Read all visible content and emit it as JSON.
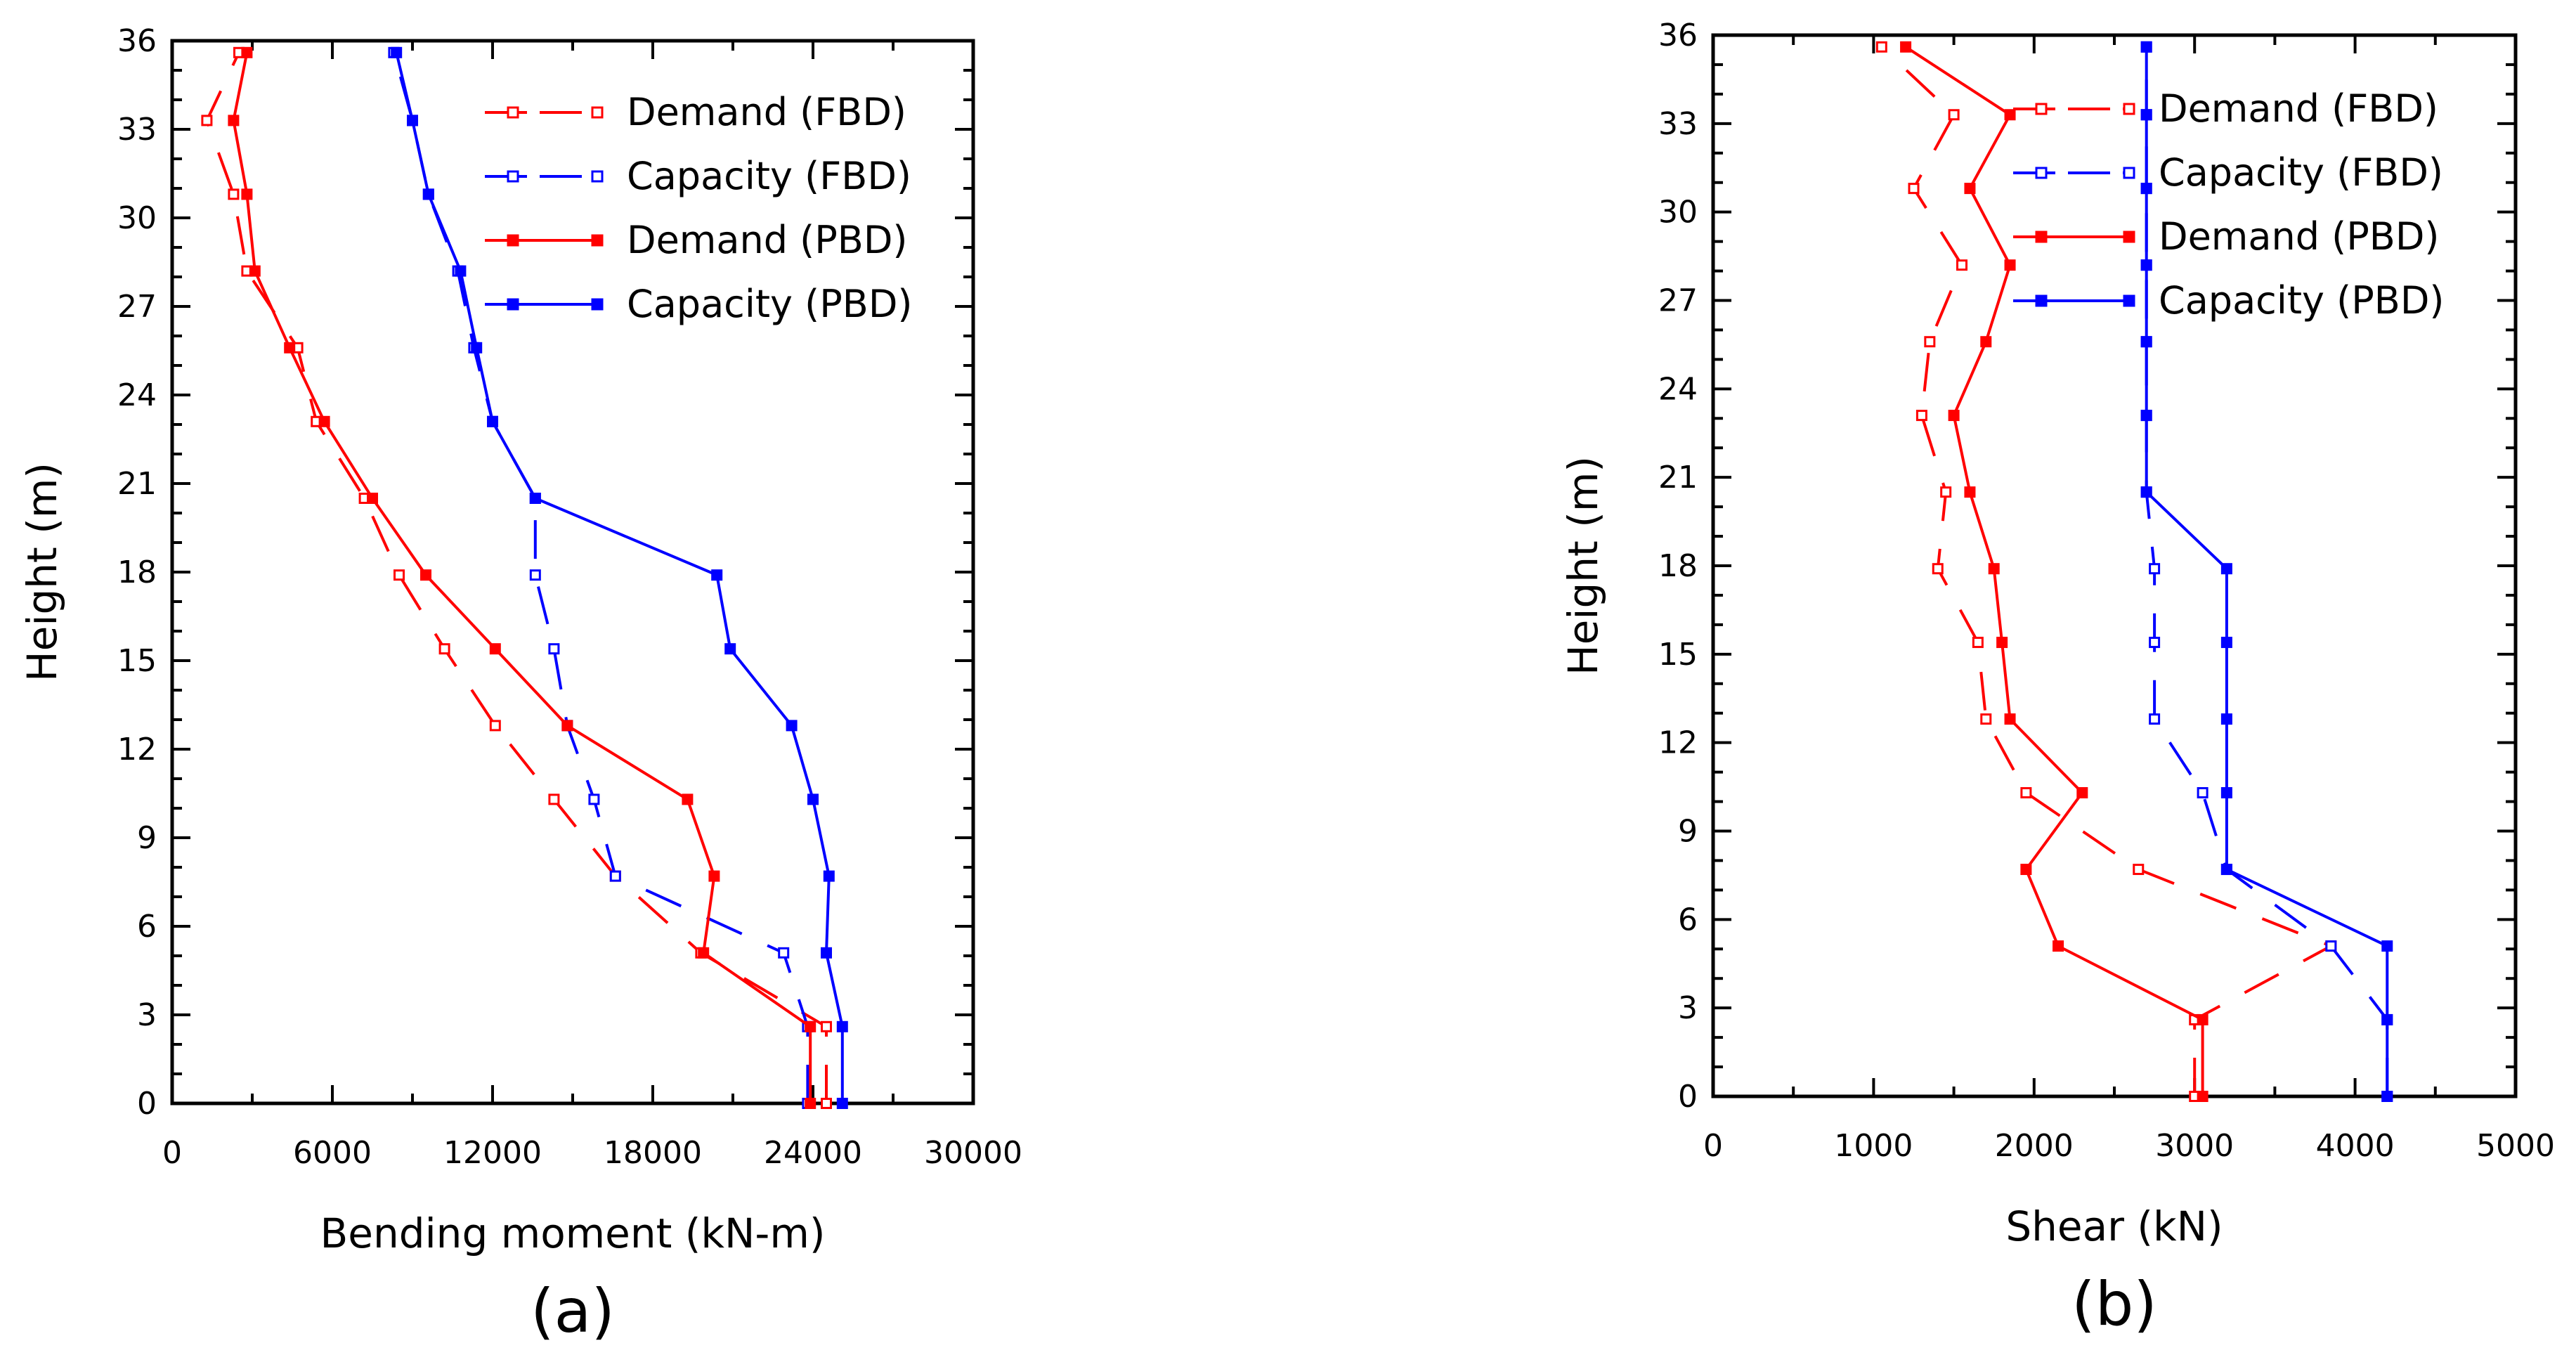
{
  "chart_data": [
    {
      "type": "line",
      "panel_label": "(a)",
      "xlabel": "Bending moment (kN-m)",
      "ylabel": "Height (m)",
      "xlim": [
        0,
        30000
      ],
      "ylim": [
        0,
        36
      ],
      "xticks": [
        "0",
        "6000",
        "12000",
        "18000",
        "24000",
        "30000"
      ],
      "yticks": [
        "0",
        "3",
        "6",
        "9",
        "12",
        "15",
        "18",
        "21",
        "24",
        "27",
        "30",
        "33",
        "36"
      ],
      "legend_position": "top-right",
      "series": [
        {
          "name": "Demand (FBD)",
          "color": "#ff0000",
          "dash": "dashed",
          "marker": "open-square",
          "points": [
            [
              24500,
              0
            ],
            [
              24500,
              2.6
            ],
            [
              19800,
              5.1
            ],
            [
              16600,
              7.7
            ],
            [
              14300,
              10.3
            ],
            [
              12100,
              12.8
            ],
            [
              10200,
              15.4
            ],
            [
              8500,
              17.9
            ],
            [
              7200,
              20.5
            ],
            [
              5400,
              23.1
            ],
            [
              4700,
              25.6
            ],
            [
              2800,
              28.2
            ],
            [
              2300,
              30.8
            ],
            [
              1300,
              33.3
            ],
            [
              2500,
              35.6
            ]
          ]
        },
        {
          "name": "Capacity (FBD)",
          "color": "#0000ff",
          "dash": "dashed",
          "marker": "open-square",
          "points": [
            [
              23800,
              0
            ],
            [
              23800,
              2.6
            ],
            [
              22900,
              5.1
            ],
            [
              16600,
              7.7
            ],
            [
              15800,
              10.3
            ],
            [
              14800,
              12.8
            ],
            [
              14300,
              15.4
            ],
            [
              13600,
              17.9
            ],
            [
              13600,
              20.5
            ],
            [
              12000,
              23.1
            ],
            [
              11300,
              25.6
            ],
            [
              10700,
              28.2
            ],
            [
              9600,
              30.8
            ],
            [
              9000,
              33.3
            ],
            [
              8300,
              35.6
            ]
          ]
        },
        {
          "name": "Demand (PBD)",
          "color": "#ff0000",
          "dash": "solid",
          "marker": "filled-square",
          "points": [
            [
              23900,
              0
            ],
            [
              23900,
              2.6
            ],
            [
              19900,
              5.1
            ],
            [
              20300,
              7.7
            ],
            [
              19300,
              10.3
            ],
            [
              14800,
              12.8
            ],
            [
              12100,
              15.4
            ],
            [
              9500,
              17.9
            ],
            [
              7500,
              20.5
            ],
            [
              5700,
              23.1
            ],
            [
              4400,
              25.6
            ],
            [
              3100,
              28.2
            ],
            [
              2800,
              30.8
            ],
            [
              2300,
              33.3
            ],
            [
              2800,
              35.6
            ]
          ]
        },
        {
          "name": "Capacity (PBD)",
          "color": "#0000ff",
          "dash": "solid",
          "marker": "filled-square",
          "points": [
            [
              25100,
              0
            ],
            [
              25100,
              2.6
            ],
            [
              24500,
              5.1
            ],
            [
              24600,
              7.7
            ],
            [
              24000,
              10.3
            ],
            [
              23200,
              12.8
            ],
            [
              20900,
              15.4
            ],
            [
              20400,
              17.9
            ],
            [
              13600,
              20.5
            ],
            [
              12000,
              23.1
            ],
            [
              11400,
              25.6
            ],
            [
              10800,
              28.2
            ],
            [
              9600,
              30.8
            ],
            [
              9000,
              33.3
            ],
            [
              8400,
              35.6
            ]
          ]
        }
      ]
    },
    {
      "type": "line",
      "panel_label": "(b)",
      "xlabel": "Shear (kN)",
      "ylabel": "Height (m)",
      "xlim": [
        0,
        5000
      ],
      "ylim": [
        0,
        36
      ],
      "xticks": [
        "0",
        "1000",
        "2000",
        "3000",
        "4000",
        "5000"
      ],
      "yticks": [
        "0",
        "3",
        "6",
        "9",
        "12",
        "15",
        "18",
        "21",
        "24",
        "27",
        "30",
        "33",
        "36"
      ],
      "legend_position": "top-right",
      "series": [
        {
          "name": "Demand (FBD)",
          "color": "#ff0000",
          "dash": "dashed",
          "marker": "open-square",
          "points": [
            [
              3000,
              0
            ],
            [
              3000,
              2.6
            ],
            [
              3850,
              5.1
            ],
            [
              2650,
              7.7
            ],
            [
              1950,
              10.3
            ],
            [
              1700,
              12.8
            ],
            [
              1650,
              15.4
            ],
            [
              1400,
              17.9
            ],
            [
              1450,
              20.5
            ],
            [
              1300,
              23.1
            ],
            [
              1350,
              25.6
            ],
            [
              1550,
              28.2
            ],
            [
              1250,
              30.8
            ],
            [
              1500,
              33.3
            ],
            [
              1050,
              35.6
            ]
          ]
        },
        {
          "name": "Capacity (FBD)",
          "color": "#0000ff",
          "dash": "dashed",
          "marker": "open-square",
          "points": [
            [
              4200,
              0
            ],
            [
              4200,
              2.6
            ],
            [
              3850,
              5.1
            ],
            [
              3200,
              7.7
            ],
            [
              3050,
              10.3
            ],
            [
              2750,
              12.8
            ],
            [
              2750,
              15.4
            ],
            [
              2750,
              17.9
            ],
            [
              2700,
              20.5
            ],
            [
              2700,
              23.1
            ],
            [
              2700,
              25.6
            ],
            [
              2700,
              28.2
            ],
            [
              2700,
              30.8
            ],
            [
              2700,
              33.3
            ],
            [
              2700,
              35.6
            ]
          ]
        },
        {
          "name": "Demand (PBD)",
          "color": "#ff0000",
          "dash": "solid",
          "marker": "filled-square",
          "points": [
            [
              3050,
              0
            ],
            [
              3050,
              2.6
            ],
            [
              2150,
              5.1
            ],
            [
              1950,
              7.7
            ],
            [
              2300,
              10.3
            ],
            [
              1850,
              12.8
            ],
            [
              1800,
              15.4
            ],
            [
              1750,
              17.9
            ],
            [
              1600,
              20.5
            ],
            [
              1500,
              23.1
            ],
            [
              1700,
              25.6
            ],
            [
              1850,
              28.2
            ],
            [
              1600,
              30.8
            ],
            [
              1850,
              33.3
            ],
            [
              1200,
              35.6
            ]
          ]
        },
        {
          "name": "Capacity (PBD)",
          "color": "#0000ff",
          "dash": "solid",
          "marker": "filled-square",
          "points": [
            [
              4200,
              0
            ],
            [
              4200,
              2.6
            ],
            [
              4200,
              5.1
            ],
            [
              3200,
              7.7
            ],
            [
              3200,
              10.3
            ],
            [
              3200,
              12.8
            ],
            [
              3200,
              15.4
            ],
            [
              3200,
              17.9
            ],
            [
              2700,
              20.5
            ],
            [
              2700,
              23.1
            ],
            [
              2700,
              25.6
            ],
            [
              2700,
              28.2
            ],
            [
              2700,
              30.8
            ],
            [
              2700,
              33.3
            ],
            [
              2700,
              35.6
            ]
          ]
        }
      ]
    }
  ]
}
